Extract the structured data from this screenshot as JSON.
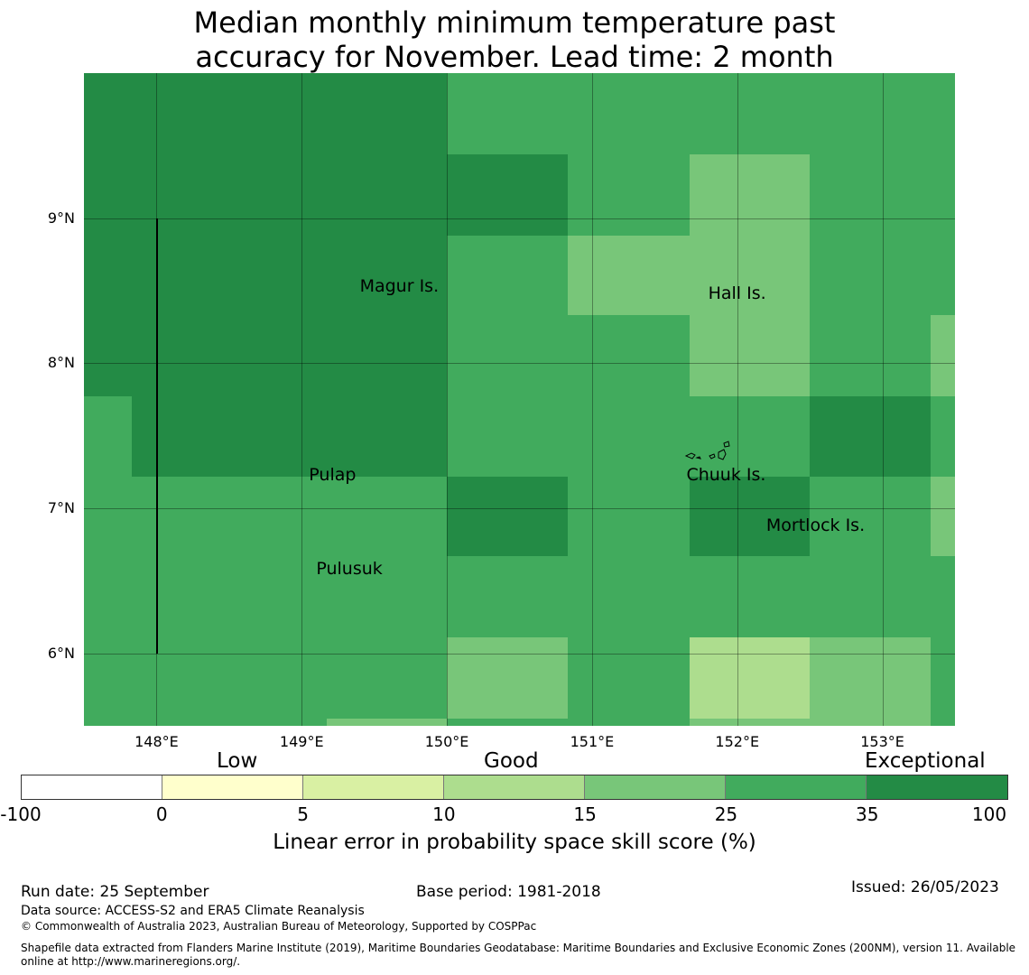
{
  "title": {
    "line1": "Median monthly minimum temperature past",
    "line2": "accuracy for November. Lead time: 2 month"
  },
  "map": {
    "lat_ticks": [
      "9°N",
      "8°N",
      "7°N",
      "6°N"
    ],
    "lon_ticks": [
      "148°E",
      "149°E",
      "150°E",
      "151°E",
      "152°E",
      "153°E"
    ],
    "lat_range": [
      5.5,
      10.0
    ],
    "lon_range": [
      147.5,
      153.5
    ],
    "places": [
      {
        "name": "Magur Is.",
        "lon": 149.4,
        "lat": 8.6
      },
      {
        "name": "Hall Is.",
        "lon": 151.8,
        "lat": 8.55
      },
      {
        "name": "Pulap",
        "lon": 149.05,
        "lat": 7.3
      },
      {
        "name": "Chuuk Is.",
        "lon": 151.65,
        "lat": 7.3
      },
      {
        "name": "Mortlock Is.",
        "lon": 152.2,
        "lat": 6.95
      },
      {
        "name": "Pulusuk",
        "lon": 149.1,
        "lat": 6.65
      }
    ],
    "category_colors": {
      "exceptional": "#238b45",
      "very_good": "#41ab5d",
      "good_high": "#78c679",
      "good_mid": "#addd8e"
    },
    "cells": [
      {
        "lon0": 147.5,
        "lon1": 150.0,
        "lat0": 7.77,
        "lat1": 10.0,
        "cat": "exceptional"
      },
      {
        "lon0": 147.83,
        "lon1": 150.0,
        "lat0": 7.22,
        "lat1": 7.77,
        "cat": "exceptional"
      },
      {
        "lon0": 150.0,
        "lon1": 150.83,
        "lat0": 8.88,
        "lat1": 9.44,
        "cat": "exceptional"
      },
      {
        "lon0": 150.83,
        "lon1": 151.67,
        "lat0": 8.33,
        "lat1": 8.88,
        "cat": "good_high"
      },
      {
        "lon0": 151.67,
        "lon1": 152.5,
        "lat0": 7.77,
        "lat1": 9.44,
        "cat": "good_high"
      },
      {
        "lon0": 153.33,
        "lon1": 153.5,
        "lat0": 7.77,
        "lat1": 8.33,
        "cat": "good_high"
      },
      {
        "lon0": 152.5,
        "lon1": 153.33,
        "lat0": 7.22,
        "lat1": 7.77,
        "cat": "exceptional"
      },
      {
        "lon0": 150.0,
        "lon1": 150.83,
        "lat0": 6.67,
        "lat1": 7.22,
        "cat": "exceptional"
      },
      {
        "lon0": 151.67,
        "lon1": 152.5,
        "lat0": 6.67,
        "lat1": 7.22,
        "cat": "exceptional"
      },
      {
        "lon0": 153.33,
        "lon1": 153.5,
        "lat0": 6.67,
        "lat1": 7.22,
        "cat": "good_high"
      },
      {
        "lon0": 150.0,
        "lon1": 150.83,
        "lat0": 5.55,
        "lat1": 6.11,
        "cat": "good_high"
      },
      {
        "lon0": 151.67,
        "lon1": 152.5,
        "lat0": 5.55,
        "lat1": 6.11,
        "cat": "good_mid"
      },
      {
        "lon0": 152.5,
        "lon1": 153.33,
        "lat0": 5.5,
        "lat1": 6.11,
        "cat": "good_high"
      },
      {
        "lon0": 151.67,
        "lon1": 152.5,
        "lat0": 5.5,
        "lat1": 5.55,
        "cat": "good_high"
      },
      {
        "lon0": 149.17,
        "lon1": 150.0,
        "lat0": 5.5,
        "lat1": 5.55,
        "cat": "good_high"
      }
    ],
    "boundary_line": {
      "lon": 148.0,
      "lat0": 6.0,
      "lat1": 9.0
    }
  },
  "legend": {
    "qualitative": [
      "Low",
      "Good",
      "Exceptional"
    ],
    "tick_labels": [
      "-100",
      "0",
      "5",
      "10",
      "15",
      "25",
      "35",
      "100"
    ],
    "colors": [
      "#ffffff",
      "#ffffcc",
      "#d9f0a3",
      "#addd8e",
      "#78c679",
      "#41ab5d",
      "#238b45"
    ],
    "axis_label": "Linear error in probability space skill score (%)"
  },
  "footer": {
    "run_date": "Run date: 25 September",
    "base_period": "Base period: 1981-2018",
    "issued": "Issued: 26/05/2023",
    "data_source": "Data source: ACCESS-S2 and ERA5 Climate Reanalysis",
    "copyright": "© Commonwealth of Australia 2023, Australian Bureau of Meteorology, Supported by COSPPac",
    "shapefile": "Shapefile data extracted from Flanders Marine Institute (2019), Maritime Boundaries Geodatabase: Maritime Boundaries and Exclusive Economic Zones (200NM), version 11. Available online at http://www.marineregions.org/."
  }
}
